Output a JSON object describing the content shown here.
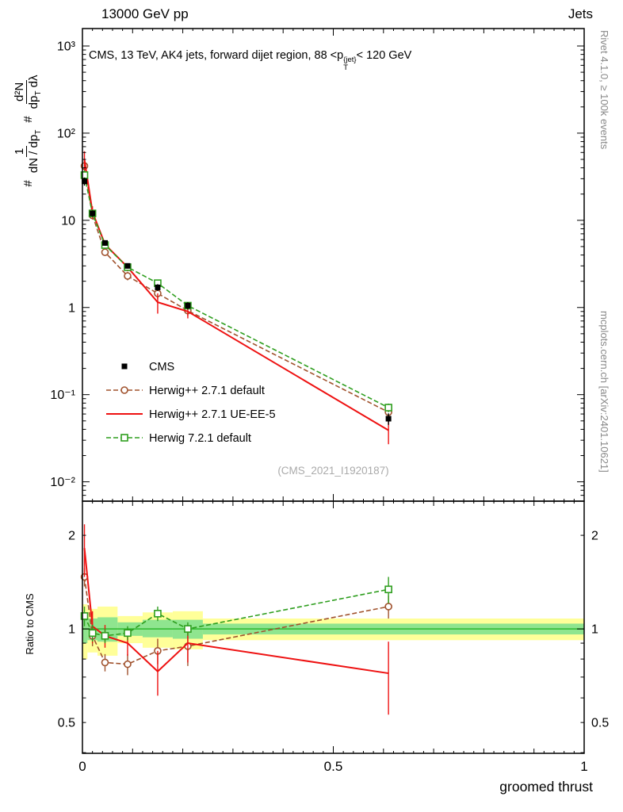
{
  "header": {
    "left": "13000 GeV pp",
    "right": "Jets"
  },
  "title": {
    "pre": "CMS, 13 TeV, AK4 jets, forward dijet region, 88 <p",
    "sup": "{jet}",
    "sub": "T",
    "post": "< 120 GeV"
  },
  "watermark": "(CMS_2021_I1920187)",
  "margin": {
    "top": "Rivet 4.1.0, ≥ 100k events",
    "bottom": "mcplots.cern.ch [arXiv:2401.10621]"
  },
  "xlabel": "groomed thrust",
  "ylabel_ratio": "Ratio to CMS",
  "ylabel_main": {
    "hash1": "#",
    "num1": "1",
    "den1_pre": "dN / dp",
    "den1_sub": "T",
    "hash2": "#",
    "num2": "d²N",
    "den2_pre": "dp",
    "den2_sub": "T",
    "den2_post": " dλ"
  },
  "colors": {
    "band_yellow": "#ffff99",
    "band_green": "#8fe58f",
    "centerline": "#2db82d",
    "cms": "#000000",
    "herwig_default": "#a0522d",
    "herwig_ueee5": "#ee1111",
    "herwig7": "#2e9e1e"
  },
  "chart_data": [
    {
      "id": "main",
      "type": "line",
      "yscale": "log",
      "xlim": [
        0,
        1
      ],
      "ylim": [
        0.006,
        1585
      ],
      "x": [
        0.004,
        0.02,
        0.045,
        0.09,
        0.15,
        0.21,
        0.61
      ],
      "yticks": [
        {
          "v": 1000,
          "label": "10³"
        },
        {
          "v": 100,
          "label": "10²"
        },
        {
          "v": 10,
          "label": "10"
        },
        {
          "v": 1,
          "label": "1"
        },
        {
          "v": 0.1,
          "label": "10⁻¹"
        },
        {
          "v": 0.01,
          "label": "10⁻²"
        }
      ],
      "series": [
        {
          "name": "Herwig++ 2.7.1 default",
          "color": "#a0522d",
          "marker": "open-circle",
          "line": "dashed",
          "values": [
            42,
            11.4,
            4.3,
            2.3,
            1.45,
            0.92,
            0.063
          ],
          "yerr": [
            8,
            1.2,
            0.4,
            0.25,
            0.2,
            0.12,
            0.012
          ]
        },
        {
          "name": "Herwig++ 2.7.1 UE-EE-5",
          "color": "#ee1111",
          "marker": "none",
          "line": "solid",
          "values": [
            50,
            12.5,
            5.3,
            2.9,
            1.15,
            0.9,
            0.039
          ],
          "yerr": [
            12,
            2,
            0.6,
            0.3,
            0.3,
            0.15,
            0.012
          ]
        },
        {
          "name": "Herwig 7.2.1 default",
          "color": "#2e9e1e",
          "marker": "open-square",
          "line": "dashed",
          "values": [
            33,
            12,
            5.2,
            2.9,
            1.9,
            1.05,
            0.071
          ],
          "yerr": [
            4,
            1,
            0.4,
            0.2,
            0.15,
            0.08,
            0.008
          ]
        },
        {
          "name": "CMS",
          "color": "#000000",
          "marker": "filled-square",
          "line": "none",
          "values": [
            28,
            12,
            5.5,
            3.0,
            1.7,
            1.05,
            0.053
          ],
          "yerr": [
            3,
            1,
            0.4,
            0.2,
            0.15,
            0.1,
            0.008
          ]
        }
      ],
      "legend_order": [
        "CMS",
        "Herwig++ 2.7.1 default",
        "Herwig++ 2.7.1 UE-EE-5",
        "Herwig 7.2.1 default"
      ]
    },
    {
      "id": "ratio",
      "type": "line",
      "yscale": "log",
      "xlim": [
        0,
        1
      ],
      "ylim": [
        0.398,
        2.576
      ],
      "x": [
        0.004,
        0.02,
        0.045,
        0.09,
        0.15,
        0.21,
        0.61
      ],
      "xticks": [
        {
          "v": 0,
          "label": "0"
        },
        {
          "v": 0.5,
          "label": "0.5"
        },
        {
          "v": 1,
          "label": "1"
        }
      ],
      "yticks": [
        {
          "v": 2,
          "label": "2"
        },
        {
          "v": 1,
          "label": "1"
        },
        {
          "v": 0.5,
          "label": "0.5"
        }
      ],
      "centerline": 1,
      "bands": {
        "yellow": [
          {
            "x0": 0,
            "x1": 0.01,
            "lo": 0.8,
            "hi": 1.2
          },
          {
            "x0": 0.01,
            "x1": 0.03,
            "lo": 0.84,
            "hi": 1.16
          },
          {
            "x0": 0.03,
            "x1": 0.07,
            "lo": 0.82,
            "hi": 1.18
          },
          {
            "x0": 0.07,
            "x1": 0.12,
            "lo": 0.9,
            "hi": 1.1
          },
          {
            "x0": 0.12,
            "x1": 0.18,
            "lo": 0.87,
            "hi": 1.13
          },
          {
            "x0": 0.18,
            "x1": 0.24,
            "lo": 0.86,
            "hi": 1.14
          },
          {
            "x0": 0.24,
            "x1": 1,
            "lo": 0.92,
            "hi": 1.08
          }
        ],
        "green": [
          {
            "x0": 0,
            "x1": 0.01,
            "lo": 0.9,
            "hi": 1.1
          },
          {
            "x0": 0.01,
            "x1": 0.03,
            "lo": 0.92,
            "hi": 1.08
          },
          {
            "x0": 0.03,
            "x1": 0.07,
            "lo": 0.91,
            "hi": 1.09
          },
          {
            "x0": 0.07,
            "x1": 0.12,
            "lo": 0.95,
            "hi": 1.05
          },
          {
            "x0": 0.12,
            "x1": 0.18,
            "lo": 0.94,
            "hi": 1.07
          },
          {
            "x0": 0.18,
            "x1": 0.24,
            "lo": 0.93,
            "hi": 1.07
          },
          {
            "x0": 0.24,
            "x1": 1,
            "lo": 0.96,
            "hi": 1.04
          }
        ]
      },
      "series": [
        {
          "name": "Herwig++ 2.7.1 default",
          "color": "#a0522d",
          "marker": "open-circle",
          "line": "dashed",
          "values": [
            1.47,
            0.95,
            0.78,
            0.77,
            0.85,
            0.88,
            1.18
          ],
          "yerr": [
            0.1,
            0.07,
            0.05,
            0.06,
            0.08,
            0.12,
            0.1
          ]
        },
        {
          "name": "Herwig++ 2.7.1 UE-EE-5",
          "color": "#ee1111",
          "marker": "none",
          "line": "solid",
          "values": [
            1.82,
            1.02,
            0.95,
            0.9,
            0.73,
            0.9,
            0.72
          ],
          "yerr": [
            0.35,
            0.12,
            0.08,
            0.08,
            0.12,
            0.12,
            0.19
          ]
        },
        {
          "name": "Herwig 7.2.1 default",
          "color": "#2e9e1e",
          "marker": "open-square",
          "line": "dashed",
          "values": [
            1.1,
            0.97,
            0.95,
            0.97,
            1.12,
            1.0,
            1.34
          ],
          "yerr": [
            0.08,
            0.06,
            0.05,
            0.05,
            0.06,
            0.05,
            0.13
          ]
        }
      ]
    }
  ]
}
